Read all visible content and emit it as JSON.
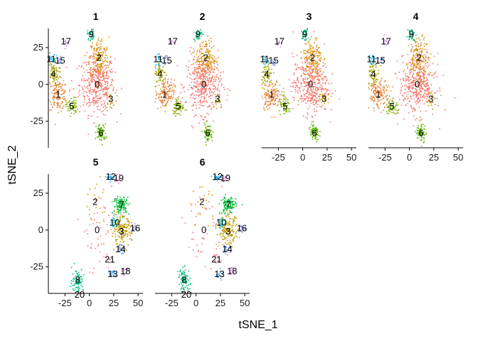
{
  "chart_data": {
    "type": "scatter",
    "xlabel": "tSNE_1",
    "ylabel": "tSNE_2",
    "x_ticks": [
      -25,
      0,
      25,
      50
    ],
    "y_ticks": [
      25,
      0,
      -25
    ],
    "xlim": [
      -42,
      55
    ],
    "ylim": [
      -43,
      38
    ],
    "grid": false,
    "legend": "none",
    "cluster_colors": {
      "0": "#F8766D",
      "1": "#E8853A",
      "2": "#D89000",
      "3": "#C09B00",
      "4": "#A3A500",
      "5": "#7CAE00",
      "6": "#5BB300",
      "7": "#00BA38",
      "8": "#00BF7D",
      "9": "#00C08B",
      "10": "#00BFC4",
      "11": "#00B4E4",
      "12": "#00A9FF",
      "13": "#35A2FF",
      "14": "#619CFF",
      "15": "#7B8FFF",
      "16": "#9590FF",
      "17": "#C77CFF",
      "18": "#E76BF3",
      "19": "#F564E3",
      "20": "#FF61C3",
      "21": "#FF6C91"
    },
    "panels": [
      {
        "title": "1",
        "clusters": [
          {
            "label": "0",
            "x": 8,
            "y": 0,
            "sx": 9,
            "sy": 10,
            "n": 420
          },
          {
            "label": "1",
            "x": -32,
            "y": -7,
            "sx": 5,
            "sy": 5,
            "n": 150
          },
          {
            "label": "2",
            "x": 10,
            "y": 18,
            "sx": 5,
            "sy": 7,
            "n": 140
          },
          {
            "label": "3",
            "x": 22,
            "y": -10,
            "sx": 3,
            "sy": 3,
            "n": 20
          },
          {
            "label": "4",
            "x": -37,
            "y": 7,
            "sx": 3,
            "sy": 4,
            "n": 70
          },
          {
            "label": "5",
            "x": -18,
            "y": -15,
            "sx": 3,
            "sy": 3,
            "n": 60
          },
          {
            "label": "6",
            "x": 12,
            "y": -33,
            "sx": 2.5,
            "sy": 3,
            "n": 70
          },
          {
            "label": "9",
            "x": 2,
            "y": 34,
            "sx": 2,
            "sy": 2,
            "n": 35
          },
          {
            "label": "11",
            "x": -39,
            "y": 17,
            "sx": 2,
            "sy": 2,
            "n": 18
          },
          {
            "label": "15",
            "x": -30,
            "y": 16,
            "sx": 2,
            "sy": 2,
            "n": 12
          },
          {
            "label": "17",
            "x": -24,
            "y": 29,
            "sx": 1.5,
            "sy": 1.5,
            "n": 10
          }
        ]
      },
      {
        "title": "2",
        "clusters": [
          {
            "label": "0",
            "x": 8,
            "y": 0,
            "sx": 9,
            "sy": 10,
            "n": 420
          },
          {
            "label": "1",
            "x": -32,
            "y": -7,
            "sx": 5,
            "sy": 5,
            "n": 150
          },
          {
            "label": "2",
            "x": 10,
            "y": 18,
            "sx": 5,
            "sy": 7,
            "n": 140
          },
          {
            "label": "3",
            "x": 22,
            "y": -10,
            "sx": 3,
            "sy": 3,
            "n": 20
          },
          {
            "label": "4",
            "x": -37,
            "y": 7,
            "sx": 3,
            "sy": 4,
            "n": 70
          },
          {
            "label": "5",
            "x": -18,
            "y": -15,
            "sx": 3,
            "sy": 3,
            "n": 60
          },
          {
            "label": "6",
            "x": 12,
            "y": -33,
            "sx": 2.5,
            "sy": 3,
            "n": 70
          },
          {
            "label": "9",
            "x": 2,
            "y": 34,
            "sx": 2,
            "sy": 2,
            "n": 35
          },
          {
            "label": "11",
            "x": -39,
            "y": 17,
            "sx": 2,
            "sy": 2,
            "n": 18
          },
          {
            "label": "15",
            "x": -30,
            "y": 16,
            "sx": 2,
            "sy": 2,
            "n": 12
          },
          {
            "label": "17",
            "x": -24,
            "y": 29,
            "sx": 1.5,
            "sy": 1.5,
            "n": 10
          }
        ]
      },
      {
        "title": "3",
        "clusters": [
          {
            "label": "0",
            "x": 8,
            "y": 0,
            "sx": 9,
            "sy": 10,
            "n": 420
          },
          {
            "label": "1",
            "x": -32,
            "y": -7,
            "sx": 5,
            "sy": 5,
            "n": 150
          },
          {
            "label": "2",
            "x": 10,
            "y": 18,
            "sx": 5,
            "sy": 7,
            "n": 140
          },
          {
            "label": "3",
            "x": 22,
            "y": -10,
            "sx": 3,
            "sy": 3,
            "n": 20
          },
          {
            "label": "4",
            "x": -37,
            "y": 7,
            "sx": 3,
            "sy": 4,
            "n": 70
          },
          {
            "label": "5",
            "x": -18,
            "y": -15,
            "sx": 3,
            "sy": 3,
            "n": 60
          },
          {
            "label": "6",
            "x": 12,
            "y": -33,
            "sx": 2.5,
            "sy": 3,
            "n": 70
          },
          {
            "label": "9",
            "x": 2,
            "y": 34,
            "sx": 2,
            "sy": 2,
            "n": 35
          },
          {
            "label": "11",
            "x": -39,
            "y": 17,
            "sx": 2,
            "sy": 2,
            "n": 18
          },
          {
            "label": "15",
            "x": -30,
            "y": 16,
            "sx": 2,
            "sy": 2,
            "n": 12
          },
          {
            "label": "17",
            "x": -24,
            "y": 29,
            "sx": 1.5,
            "sy": 1.5,
            "n": 10
          }
        ]
      },
      {
        "title": "4",
        "clusters": [
          {
            "label": "0",
            "x": 8,
            "y": 0,
            "sx": 9,
            "sy": 10,
            "n": 420
          },
          {
            "label": "1",
            "x": -32,
            "y": -7,
            "sx": 5,
            "sy": 5,
            "n": 150
          },
          {
            "label": "2",
            "x": 10,
            "y": 18,
            "sx": 5,
            "sy": 7,
            "n": 140
          },
          {
            "label": "3",
            "x": 22,
            "y": -10,
            "sx": 3,
            "sy": 3,
            "n": 20
          },
          {
            "label": "4",
            "x": -37,
            "y": 7,
            "sx": 3,
            "sy": 4,
            "n": 70
          },
          {
            "label": "5",
            "x": -18,
            "y": -15,
            "sx": 3,
            "sy": 3,
            "n": 60
          },
          {
            "label": "6",
            "x": 12,
            "y": -33,
            "sx": 2.5,
            "sy": 3,
            "n": 70
          },
          {
            "label": "9",
            "x": 2,
            "y": 34,
            "sx": 2,
            "sy": 2,
            "n": 35
          },
          {
            "label": "11",
            "x": -39,
            "y": 17,
            "sx": 2,
            "sy": 2,
            "n": 18
          },
          {
            "label": "15",
            "x": -30,
            "y": 16,
            "sx": 2,
            "sy": 2,
            "n": 12
          },
          {
            "label": "17",
            "x": -24,
            "y": 29,
            "sx": 1.5,
            "sy": 1.5,
            "n": 10
          }
        ]
      },
      {
        "title": "5",
        "clusters": [
          {
            "label": "0",
            "x": 8,
            "y": 0,
            "sx": 10,
            "sy": 14,
            "n": 45
          },
          {
            "label": "2",
            "x": 6,
            "y": 19,
            "sx": 7,
            "sy": 8,
            "n": 20
          },
          {
            "label": "3",
            "x": 33,
            "y": -1,
            "sx": 5,
            "sy": 5,
            "n": 160
          },
          {
            "label": "7",
            "x": 33,
            "y": 17,
            "sx": 4,
            "sy": 3,
            "n": 120
          },
          {
            "label": "8",
            "x": -12,
            "y": -34,
            "sx": 3,
            "sy": 4,
            "n": 90
          },
          {
            "label": "10",
            "x": 26,
            "y": 5,
            "sx": 2,
            "sy": 2,
            "n": 25
          },
          {
            "label": "12",
            "x": 22,
            "y": 36,
            "sx": 2,
            "sy": 1.5,
            "n": 25
          },
          {
            "label": "13",
            "x": 24,
            "y": -30,
            "sx": 2,
            "sy": 1.5,
            "n": 18
          },
          {
            "label": "14",
            "x": 32,
            "y": -13,
            "sx": 2,
            "sy": 2,
            "n": 20
          },
          {
            "label": "16",
            "x": 47,
            "y": 1,
            "sx": 2,
            "sy": 1.5,
            "n": 18
          },
          {
            "label": "18",
            "x": 37,
            "y": -28,
            "sx": 1.5,
            "sy": 1.5,
            "n": 10
          },
          {
            "label": "19",
            "x": 30,
            "y": 35,
            "sx": 1.5,
            "sy": 1.5,
            "n": 10
          },
          {
            "label": "20",
            "x": -10,
            "y": -44,
            "sx": 1.5,
            "sy": 1,
            "n": 8
          },
          {
            "label": "21",
            "x": 21,
            "y": -20,
            "sx": 2,
            "sy": 2,
            "n": 10
          }
        ]
      },
      {
        "title": "6",
        "clusters": [
          {
            "label": "0",
            "x": 8,
            "y": 0,
            "sx": 10,
            "sy": 14,
            "n": 45
          },
          {
            "label": "2",
            "x": 6,
            "y": 19,
            "sx": 7,
            "sy": 8,
            "n": 20
          },
          {
            "label": "3",
            "x": 33,
            "y": -1,
            "sx": 5,
            "sy": 5,
            "n": 160
          },
          {
            "label": "7",
            "x": 33,
            "y": 17,
            "sx": 4,
            "sy": 3,
            "n": 120
          },
          {
            "label": "8",
            "x": -12,
            "y": -34,
            "sx": 3,
            "sy": 4,
            "n": 90
          },
          {
            "label": "10",
            "x": 26,
            "y": 5,
            "sx": 2,
            "sy": 2,
            "n": 25
          },
          {
            "label": "12",
            "x": 22,
            "y": 36,
            "sx": 2,
            "sy": 1.5,
            "n": 25
          },
          {
            "label": "13",
            "x": 24,
            "y": -30,
            "sx": 2,
            "sy": 1.5,
            "n": 18
          },
          {
            "label": "14",
            "x": 32,
            "y": -13,
            "sx": 2,
            "sy": 2,
            "n": 20
          },
          {
            "label": "16",
            "x": 47,
            "y": 1,
            "sx": 2,
            "sy": 1.5,
            "n": 18
          },
          {
            "label": "18",
            "x": 37,
            "y": -28,
            "sx": 1.5,
            "sy": 1.5,
            "n": 10
          },
          {
            "label": "19",
            "x": 30,
            "y": 35,
            "sx": 1.5,
            "sy": 1.5,
            "n": 10
          },
          {
            "label": "20",
            "x": -10,
            "y": -44,
            "sx": 1.5,
            "sy": 1,
            "n": 8
          },
          {
            "label": "21",
            "x": 21,
            "y": -20,
            "sx": 2,
            "sy": 2,
            "n": 10
          }
        ]
      }
    ]
  }
}
